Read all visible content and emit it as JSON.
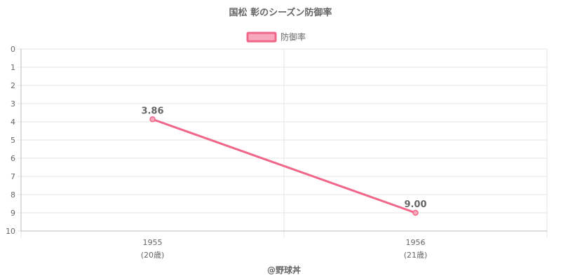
{
  "chart_data": {
    "type": "line",
    "title": "国松 彰のシーズン防御率",
    "legend": {
      "label": "防御率",
      "position": "top"
    },
    "categories": [
      "1955",
      "1956"
    ],
    "category_sublabels": [
      "(20歳)",
      "(21歳)"
    ],
    "series": [
      {
        "name": "防御率",
        "values": [
          3.86,
          9.0
        ],
        "value_labels": [
          "3.86",
          "9.00"
        ]
      }
    ],
    "y_axis": {
      "min": 0,
      "max": 10,
      "step": 1,
      "reversed": true,
      "ticks": [
        "0",
        "1",
        "2",
        "3",
        "4",
        "5",
        "6",
        "7",
        "8",
        "9",
        "10"
      ]
    },
    "grid": true,
    "colors": {
      "line": "#f0678a",
      "fill": "#f7a8bd",
      "grid": "#e6e6e6",
      "text": "#666666"
    }
  },
  "credit": "@野球丼"
}
